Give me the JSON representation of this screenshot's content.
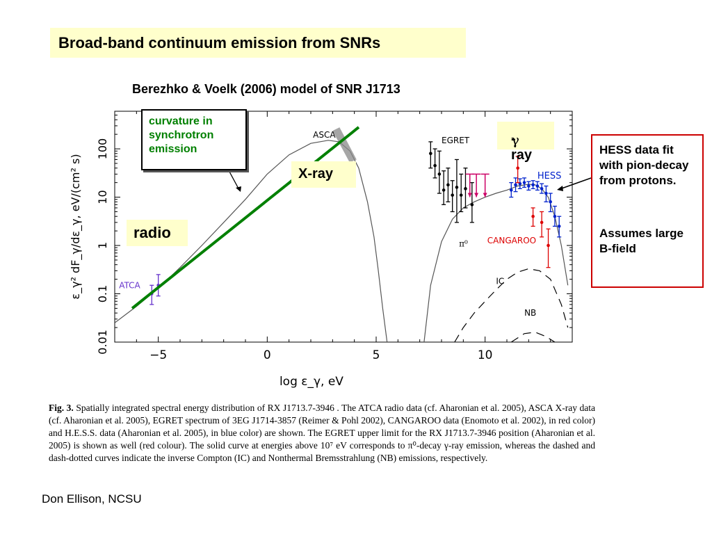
{
  "slide": {
    "title": "Broad-band continuum emission from SNRs",
    "subtitle": "Berezhko & Voelk (2006) model of SNR J1713",
    "footer": "Don Ellison, NCSU"
  },
  "annotations": {
    "curvature": "curvature in synchrotron emission",
    "radio": "radio",
    "xray": "X-ray",
    "gamma_symbol": "γ",
    "gamma_suffix": "-ray",
    "hess_line1": "HESS data fit with pion-decay from protons.",
    "hess_line2": "Assumes large B-field"
  },
  "caption": {
    "label": "Fig. 3.",
    "text": " Spatially integrated spectral energy distribution of RX J1713.7-3946 . The ATCA radio data (cf. Aharonian et al. 2005), ASCA X-ray data (cf. Aharonian et al. 2005), EGRET spectrum of 3EG J1714-3857 (Reimer & Pohl 2002), CANGAROO data (Enomoto et al. 2002), in red color) and H.E.S.S. data (Aharonian et al. 2005), in blue color) are shown. The EGRET upper limit for the RX J1713.7-3946 position (Aharonian et al. 2005) is shown as well (red colour). The solid curve at energies above 10⁷ eV corresponds to π⁰-decay γ-ray emission, whereas the dashed and dash-dotted curves indicate the inverse Compton (IC) and Nonthermal Bremsstrahlung (NB) emissions, respectively."
  },
  "chart_data": {
    "type": "line",
    "xlabel": "log ε_γ, eV",
    "ylabel": "ε_γ² dF_γ/dε_γ, eV/(cm² s)",
    "xlim": [
      -7,
      14
    ],
    "ylim": [
      0.01,
      600
    ],
    "y_scale": "log",
    "x_ticks": [
      -5,
      0,
      5,
      10
    ],
    "x_tick_labels": [
      "−5",
      "0",
      "5",
      "10"
    ],
    "y_ticks": [
      0.01,
      0.1,
      1,
      10,
      100
    ],
    "y_tick_labels": [
      "0.01",
      "0.1",
      "1",
      "10",
      "100"
    ],
    "curve_labels": {
      "pi0": "π⁰",
      "ic": "IC",
      "nb": "NB"
    },
    "series": [
      {
        "name": "synchrotron",
        "style": "solid",
        "color": "#555555",
        "x": [
          -7,
          -6,
          -5,
          -4,
          -3,
          -2,
          -1,
          0,
          1,
          2,
          2.8,
          3.3,
          3.8,
          4.2,
          4.6,
          4.9,
          5.1,
          5.3,
          5.5
        ],
        "y": [
          0.025,
          0.055,
          0.13,
          0.35,
          1.0,
          3.0,
          9,
          30,
          75,
          130,
          150,
          140,
          90,
          40,
          8,
          1.5,
          0.3,
          0.05,
          0.01
        ]
      },
      {
        "name": "pi0",
        "style": "solid",
        "color": "#555555",
        "x": [
          7.2,
          7.5,
          8.0,
          8.5,
          9.0,
          9.5,
          10,
          10.5,
          11,
          11.5,
          12,
          12.3,
          12.6,
          12.9,
          13.2,
          13.5,
          13.8
        ],
        "y": [
          0.01,
          0.15,
          1.2,
          3.5,
          6,
          8,
          10,
          12,
          14,
          17,
          18.5,
          18,
          15,
          10,
          4,
          1.0,
          0.15
        ]
      },
      {
        "name": "IC",
        "style": "dashed",
        "color": "#000000",
        "x": [
          8.6,
          9,
          9.5,
          10,
          10.5,
          11,
          11.5,
          12,
          12.5,
          13,
          13.5,
          13.8
        ],
        "y": [
          0.01,
          0.02,
          0.04,
          0.07,
          0.12,
          0.2,
          0.28,
          0.33,
          0.3,
          0.2,
          0.06,
          0.02
        ]
      },
      {
        "name": "NB",
        "style": "dashed",
        "color": "#000000",
        "x": [
          11.2,
          11.8,
          12.3,
          12.8,
          13.2
        ],
        "y": [
          0.01,
          0.015,
          0.016,
          0.013,
          0.01
        ]
      }
    ],
    "fit_line": {
      "color": "#008000",
      "x": [
        -6.2,
        4.2
      ],
      "y": [
        0.05,
        280
      ]
    },
    "datasets": [
      {
        "name": "ATCA",
        "color": "#6633cc",
        "points": [
          {
            "x": -5.3,
            "y": 0.1,
            "lo": 0.06,
            "hi": 0.15
          },
          {
            "x": -5.0,
            "y": 0.15,
            "lo": 0.09,
            "hi": 0.25
          }
        ]
      },
      {
        "name": "ASCA",
        "color": "#555555",
        "x": [
          3.0,
          4.1
        ]
      },
      {
        "name": "EGRET",
        "color": "#000000",
        "points": [
          {
            "x": 7.5,
            "y": 80,
            "lo": 40,
            "hi": 140
          },
          {
            "x": 7.7,
            "y": 45,
            "lo": 25,
            "hi": 100
          },
          {
            "x": 7.9,
            "y": 30,
            "lo": 12,
            "hi": 90
          },
          {
            "x": 8.1,
            "y": 14,
            "lo": 7,
            "hi": 35
          },
          {
            "x": 8.3,
            "y": 18,
            "lo": 8,
            "hi": 40
          },
          {
            "x": 8.5,
            "y": 11,
            "lo": 5,
            "hi": 22
          },
          {
            "x": 8.7,
            "y": 16,
            "lo": 3,
            "hi": 60
          },
          {
            "x": 8.9,
            "y": 11,
            "lo": 5,
            "hi": 30
          },
          {
            "x": 9.1,
            "y": 15,
            "lo": 6,
            "hi": 40
          },
          {
            "x": 9.4,
            "y": 7,
            "lo": 3,
            "hi": 20
          }
        ]
      },
      {
        "name": "EGRET upper limit",
        "color": "#cc0066",
        "points": [
          {
            "x": 9.3,
            "y": 30,
            "lo": 10,
            "hi": 30
          },
          {
            "x": 9.6,
            "y": 30,
            "lo": 10,
            "hi": 30
          },
          {
            "x": 10.0,
            "y": 30,
            "lo": 10,
            "hi": 30
          }
        ]
      },
      {
        "name": "HESS",
        "color": "#0022cc",
        "points": [
          {
            "x": 11.2,
            "y": 14,
            "lo": 10,
            "hi": 20
          },
          {
            "x": 11.4,
            "y": 18,
            "lo": 13,
            "hi": 25
          },
          {
            "x": 11.6,
            "y": 19,
            "lo": 15,
            "hi": 24
          },
          {
            "x": 11.8,
            "y": 20,
            "lo": 16,
            "hi": 25
          },
          {
            "x": 12.0,
            "y": 17,
            "lo": 14,
            "hi": 21
          },
          {
            "x": 12.2,
            "y": 18,
            "lo": 15,
            "hi": 22
          },
          {
            "x": 12.4,
            "y": 17,
            "lo": 14,
            "hi": 21
          },
          {
            "x": 12.6,
            "y": 15,
            "lo": 12,
            "hi": 19
          },
          {
            "x": 12.8,
            "y": 12,
            "lo": 8,
            "hi": 17
          },
          {
            "x": 13.0,
            "y": 8,
            "lo": 5,
            "hi": 12
          },
          {
            "x": 13.2,
            "y": 4,
            "lo": 2.5,
            "hi": 6.5
          },
          {
            "x": 13.4,
            "y": 2.5,
            "lo": 1.5,
            "hi": 4
          }
        ]
      },
      {
        "name": "CANGAROO",
        "color": "#dd0000",
        "points": [
          {
            "x": 11.5,
            "y": 40,
            "lo": 20,
            "hi": 70
          },
          {
            "x": 12.2,
            "y": 4,
            "lo": 2.5,
            "hi": 6
          },
          {
            "x": 12.6,
            "y": 3,
            "lo": 1.5,
            "hi": 5
          },
          {
            "x": 12.9,
            "y": 1.0,
            "lo": 0.35,
            "hi": 2.2
          }
        ]
      }
    ]
  }
}
